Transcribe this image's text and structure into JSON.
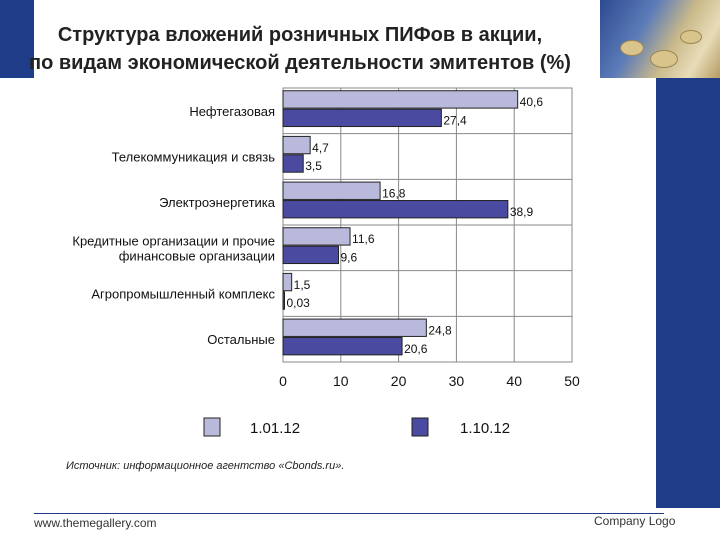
{
  "chart_data": {
    "type": "bar",
    "title": "Структура вложений розничных ПИФов в акции,",
    "subtitle": "по видам экономической деятельности эмитентов (%)",
    "categories": [
      [
        "Нефтегазовая"
      ],
      [
        "Телекоммуникация и связь"
      ],
      [
        "Электроэнергетика"
      ],
      [
        "Кредитные организации и прочие",
        "финансовые организации"
      ],
      [
        "Агропромышленный комплекс"
      ],
      [
        "Остальные"
      ]
    ],
    "series": [
      {
        "name": "1.01.12",
        "values": [
          40.6,
          4.7,
          16.8,
          11.6,
          1.5,
          24.8
        ],
        "labels": [
          "40,6",
          "4,7",
          "16,8",
          "11,6",
          "1,5",
          "24,8"
        ]
      },
      {
        "name": "1.10.12",
        "values": [
          27.4,
          3.5,
          38.9,
          9.6,
          0.03,
          20.6
        ],
        "labels": [
          "27,4",
          "3,5",
          "38,9",
          "9,6",
          "0,03",
          "20,6"
        ]
      }
    ],
    "xlim": [
      0,
      50
    ],
    "xticks": [
      0,
      10,
      20,
      30,
      40,
      50
    ],
    "grid": true,
    "legend_position": "bottom",
    "colors": {
      "series1": "#b9b9dc",
      "series2": "#4a4aa0",
      "edge": "#222222",
      "grid": "#888888"
    }
  },
  "source_note": "Источник: информационное агентство «Cbonds.ru».",
  "footer": {
    "website": "www.themegallery.com",
    "logo_text": "Company Logo"
  }
}
